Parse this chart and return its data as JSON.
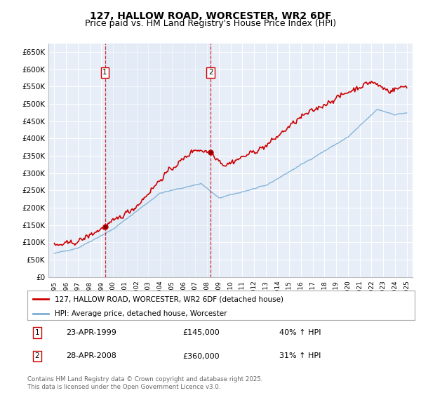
{
  "title": "127, HALLOW ROAD, WORCESTER, WR2 6DF",
  "subtitle": "Price paid vs. HM Land Registry's House Price Index (HPI)",
  "ylim": [
    0,
    675000
  ],
  "yticks": [
    0,
    50000,
    100000,
    150000,
    200000,
    250000,
    300000,
    350000,
    400000,
    450000,
    500000,
    550000,
    600000,
    650000
  ],
  "ytick_labels": [
    "£0",
    "£50K",
    "£100K",
    "£150K",
    "£200K",
    "£250K",
    "£300K",
    "£350K",
    "£400K",
    "£450K",
    "£500K",
    "£550K",
    "£600K",
    "£650K"
  ],
  "sale1_year": 1999.31,
  "sale1_price": 145000,
  "sale1_label": "1",
  "sale1_date": "23-APR-1999",
  "sale1_hpi": "40% ↑ HPI",
  "sale2_year": 2008.32,
  "sale2_price": 360000,
  "sale2_label": "2",
  "sale2_date": "28-APR-2008",
  "sale2_hpi": "31% ↑ HPI",
  "price_line_color": "#cc0000",
  "hpi_line_color": "#7bafd4",
  "fill_color": "#dce8f5",
  "background_color": "#ffffff",
  "plot_bg_color": "#e8eef8",
  "grid_color": "#ffffff",
  "legend1": "127, HALLOW ROAD, WORCESTER, WR2 6DF (detached house)",
  "legend2": "HPI: Average price, detached house, Worcester",
  "footnote": "Contains HM Land Registry data © Crown copyright and database right 2025.\nThis data is licensed under the Open Government Licence v3.0.",
  "title_fontsize": 10,
  "subtitle_fontsize": 9
}
